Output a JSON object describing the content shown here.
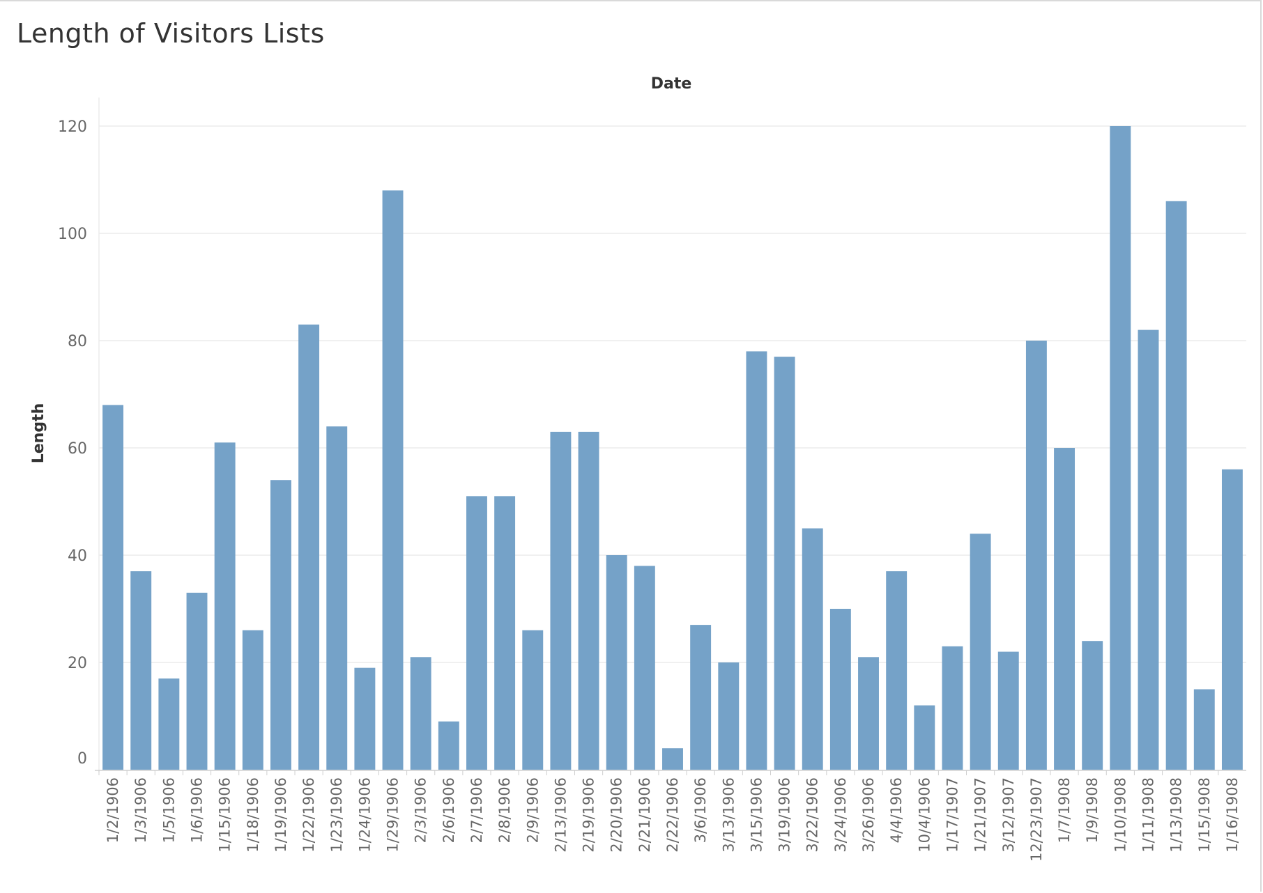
{
  "title": "Length of Visitors Lists",
  "colors": {
    "bar": "#75a2c8",
    "grid": "#ebebeb",
    "axis": "#cfcfcf"
  },
  "chart_data": {
    "type": "bar",
    "title": "Length of Visitors Lists",
    "xlabel": "Date",
    "ylabel": "Length",
    "ylim": [
      0,
      126
    ],
    "yticks": [
      0,
      20,
      40,
      60,
      80,
      100,
      120
    ],
    "grid": true,
    "categories": [
      "1/2/1906",
      "1/3/1906",
      "1/5/1906",
      "1/6/1906",
      "1/15/1906",
      "1/18/1906",
      "1/19/1906",
      "1/22/1906",
      "1/23/1906",
      "1/24/1906",
      "1/29/1906",
      "2/3/1906",
      "2/6/1906",
      "2/7/1906",
      "2/8/1906",
      "2/9/1906",
      "2/13/1906",
      "2/19/1906",
      "2/20/1906",
      "2/21/1906",
      "2/22/1906",
      "3/6/1906",
      "3/13/1906",
      "3/15/1906",
      "3/19/1906",
      "3/22/1906",
      "3/24/1906",
      "3/26/1906",
      "4/4/1906",
      "10/4/1906",
      "1/17/1907",
      "1/21/1907",
      "3/12/1907",
      "12/23/1907",
      "1/7/1908",
      "1/9/1908",
      "1/10/1908",
      "1/11/1908",
      "1/13/1908",
      "1/15/1908",
      "1/16/1908"
    ],
    "values": [
      68,
      37,
      17,
      33,
      61,
      26,
      54,
      83,
      64,
      19,
      108,
      21,
      9,
      51,
      51,
      26,
      63,
      63,
      40,
      38,
      4,
      27,
      20,
      78,
      77,
      45,
      30,
      21,
      37,
      12,
      23,
      44,
      22,
      80,
      60,
      24,
      120,
      82,
      106,
      15,
      56
    ]
  }
}
